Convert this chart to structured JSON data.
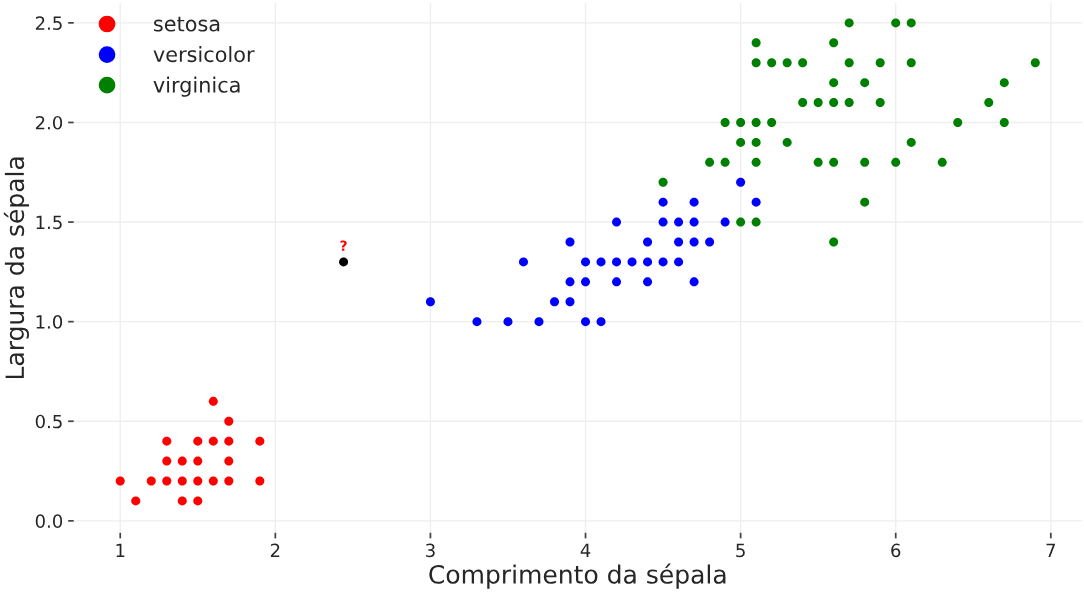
{
  "chart_data": {
    "type": "scatter",
    "xlabel": "Comprimento da sépala",
    "ylabel": "Largura da sépala",
    "xlim": [
      0.7,
      7.2
    ],
    "ylim": [
      -0.06,
      2.6
    ],
    "xticks": [
      1,
      2,
      3,
      4,
      5,
      6,
      7
    ],
    "yticks": [
      {
        "value": 0,
        "label": "0.0"
      },
      0.5,
      {
        "value": 1,
        "label": "1.0"
      },
      1.5,
      {
        "value": 2,
        "label": "2.0"
      },
      2.5
    ],
    "grid": true,
    "legend": "top left",
    "marker": "circle",
    "series": [
      {
        "name": "setosa",
        "color": "#ff0000",
        "x": [
          1.0,
          1.1,
          1.2,
          1.3,
          1.3,
          1.3,
          1.4,
          1.4,
          1.4,
          1.5,
          1.5,
          1.5,
          1.5,
          1.6,
          1.6,
          1.6,
          1.7,
          1.7,
          1.7,
          1.7,
          1.9,
          1.9
        ],
        "values": [
          0.2,
          0.1,
          0.2,
          0.2,
          0.3,
          0.4,
          0.1,
          0.2,
          0.3,
          0.1,
          0.2,
          0.3,
          0.4,
          0.2,
          0.4,
          0.6,
          0.2,
          0.3,
          0.4,
          0.5,
          0.2,
          0.4
        ]
      },
      {
        "name": "versicolor",
        "color": "#0000ff",
        "x": [
          3.0,
          3.3,
          3.5,
          3.6,
          3.7,
          3.8,
          3.9,
          3.9,
          3.9,
          4.0,
          4.0,
          4.0,
          4.1,
          4.1,
          4.2,
          4.2,
          4.2,
          4.3,
          4.4,
          4.4,
          4.4,
          4.5,
          4.5,
          4.5,
          4.6,
          4.6,
          4.6,
          4.7,
          4.7,
          4.7,
          4.7,
          4.8,
          4.9,
          5.0,
          5.1
        ],
        "values": [
          1.1,
          1.0,
          1.0,
          1.3,
          1.0,
          1.1,
          1.1,
          1.2,
          1.4,
          1.0,
          1.2,
          1.3,
          1.0,
          1.3,
          1.2,
          1.3,
          1.5,
          1.3,
          1.2,
          1.3,
          1.4,
          1.3,
          1.5,
          1.6,
          1.3,
          1.4,
          1.5,
          1.2,
          1.4,
          1.5,
          1.6,
          1.4,
          1.5,
          1.7,
          1.6
        ]
      },
      {
        "name": "virginica",
        "color": "#008000",
        "x": [
          4.5,
          4.8,
          4.9,
          4.9,
          5.0,
          5.0,
          5.0,
          5.1,
          5.1,
          5.1,
          5.1,
          5.1,
          5.1,
          5.2,
          5.2,
          5.3,
          5.3,
          5.4,
          5.4,
          5.5,
          5.5,
          5.6,
          5.6,
          5.6,
          5.6,
          5.6,
          5.7,
          5.7,
          5.7,
          5.8,
          5.8,
          5.8,
          5.9,
          5.9,
          6.0,
          6.0,
          6.1,
          6.1,
          6.1,
          6.3,
          6.4,
          6.6,
          6.7,
          6.7,
          6.9
        ],
        "values": [
          1.7,
          1.8,
          1.8,
          2.0,
          1.5,
          1.9,
          2.0,
          1.5,
          1.8,
          1.9,
          2.0,
          2.3,
          2.4,
          2.0,
          2.3,
          1.9,
          2.3,
          2.1,
          2.3,
          1.8,
          2.1,
          1.4,
          1.8,
          2.1,
          2.2,
          2.4,
          2.1,
          2.3,
          2.5,
          1.6,
          1.8,
          2.2,
          2.1,
          2.3,
          1.8,
          2.5,
          1.9,
          2.3,
          2.5,
          1.8,
          2.0,
          2.1,
          2.0,
          2.2,
          2.3
        ]
      },
      {
        "color": "#000000",
        "x": [
          2.44
        ],
        "values": [
          1.3
        ]
      }
    ],
    "annotations": [
      {
        "text": "?",
        "x": 2.44,
        "y": 1.3
      }
    ]
  }
}
